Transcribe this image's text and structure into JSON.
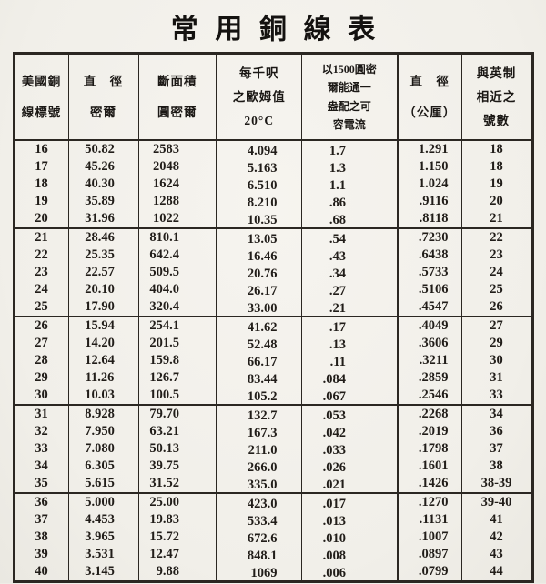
{
  "title": "常用銅線表",
  "colors": {
    "paper": "#f2f0ea",
    "ink": "#1d1a16",
    "border": "#2b2722"
  },
  "table": {
    "headers": [
      {
        "id": "awg-number",
        "lines": [
          "美國銅",
          "線標號"
        ]
      },
      {
        "id": "diameter-mils",
        "lines": [
          "直　徑",
          "密爾"
        ]
      },
      {
        "id": "area-cmil",
        "lines": [
          "斷面積",
          "圓密爾"
        ]
      },
      {
        "id": "ohms-per-1000ft",
        "lines": [
          "每千呎",
          "之歐姆值",
          "20°C"
        ]
      },
      {
        "id": "current-capacity",
        "lines": [
          "以1500圓密",
          "爾能通一",
          "盎配之可",
          "容電流"
        ]
      },
      {
        "id": "diameter-mm",
        "lines": [
          "直　徑",
          "（公厘）"
        ]
      },
      {
        "id": "english-gauge",
        "lines": [
          "與英制",
          "相近之",
          "號數"
        ]
      }
    ],
    "rows": [
      [
        "16",
        "50.82",
        "2583",
        "4.094",
        "1.7",
        "1.291",
        "18"
      ],
      [
        "17",
        "45.26",
        "2048",
        "5.163",
        "1.3",
        "1.150",
        "18"
      ],
      [
        "18",
        "40.30",
        "1624",
        "6.510",
        "1.1",
        "1.024",
        "19"
      ],
      [
        "19",
        "35.89",
        "1288",
        "8.210",
        ".86",
        ".9116",
        "20"
      ],
      [
        "20",
        "31.96",
        "1022",
        "10.35",
        ".68",
        ".8118",
        "21"
      ],
      [
        "21",
        "28.46",
        "810.1",
        "13.05",
        ".54",
        ".7230",
        "22"
      ],
      [
        "22",
        "25.35",
        "642.4",
        "16.46",
        ".43",
        ".6438",
        "23"
      ],
      [
        "23",
        "22.57",
        "509.5",
        "20.76",
        ".34",
        ".5733",
        "24"
      ],
      [
        "24",
        "20.10",
        "404.0",
        "26.17",
        ".27",
        ".5106",
        "25"
      ],
      [
        "25",
        "17.90",
        "320.4",
        "33.00",
        ".21",
        ".4547",
        "26"
      ],
      [
        "26",
        "15.94",
        "254.1",
        "41.62",
        ".17",
        ".4049",
        "27"
      ],
      [
        "27",
        "14.20",
        "201.5",
        "52.48",
        ".13",
        ".3606",
        "29"
      ],
      [
        "28",
        "12.64",
        "159.8",
        "66.17",
        ".11",
        ".3211",
        "30"
      ],
      [
        "29",
        "11.26",
        "126.7",
        "83.44",
        ".084",
        ".2859",
        "31"
      ],
      [
        "30",
        "10.03",
        "100.5",
        "105.2",
        ".067",
        ".2546",
        "33"
      ],
      [
        "31",
        "8.928",
        "79.70",
        "132.7",
        ".053",
        ".2268",
        "34"
      ],
      [
        "32",
        "7.950",
        "63.21",
        "167.3",
        ".042",
        ".2019",
        "36"
      ],
      [
        "33",
        "7.080",
        "50.13",
        "211.0",
        ".033",
        ".1798",
        "37"
      ],
      [
        "34",
        "6.305",
        "39.75",
        "266.0",
        ".026",
        ".1601",
        "38"
      ],
      [
        "35",
        "5.615",
        "31.52",
        "335.0",
        ".021",
        ".1426",
        "38-39"
      ],
      [
        "36",
        "5.000",
        "25.00",
        "423.0",
        ".017",
        ".1270",
        "39-40"
      ],
      [
        "37",
        "4.453",
        "19.83",
        "533.4",
        ".013",
        ".1131",
        "41"
      ],
      [
        "38",
        "3.965",
        "15.72",
        "672.6",
        ".010",
        ".1007",
        "42"
      ],
      [
        "39",
        "3.531",
        "12.47",
        "848.1",
        ".008",
        ".0897",
        "43"
      ],
      [
        "40",
        "3.145",
        "9.88",
        "1069",
        ".006",
        ".0799",
        "44"
      ]
    ],
    "group_last_gauges": [
      "20",
      "25",
      "30",
      "35"
    ]
  }
}
